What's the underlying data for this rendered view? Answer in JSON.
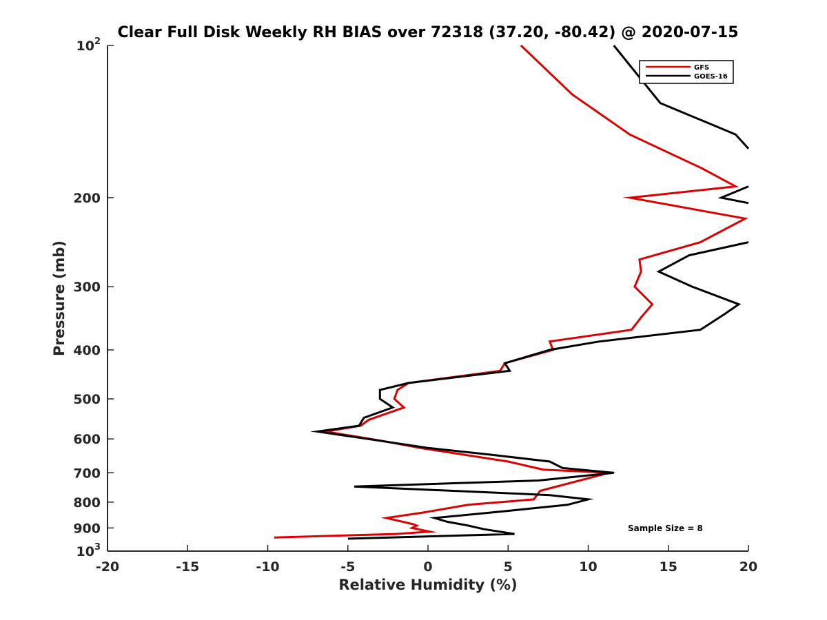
{
  "chart_data": {
    "type": "line",
    "title": "Clear Full Disk Weekly RH BIAS over 72318 (37.20, -80.42) @ 2020-07-15",
    "xlabel": "Relative Humidity (%)",
    "ylabel": "Pressure (mb)",
    "xlim": [
      -20,
      20
    ],
    "ylim": [
      100,
      1000
    ],
    "yscale": "log",
    "y_reversed": true,
    "x_ticks": [
      "-20",
      "-15",
      "-10",
      "-5",
      "0",
      "5",
      "10",
      "15",
      "20"
    ],
    "y_ticks": [
      {
        "value": 100,
        "label": "10",
        "sup": "2"
      },
      {
        "value": 200,
        "label": "200",
        "sup": ""
      },
      {
        "value": 300,
        "label": "300",
        "sup": ""
      },
      {
        "value": 400,
        "label": "400",
        "sup": ""
      },
      {
        "value": 500,
        "label": "500",
        "sup": ""
      },
      {
        "value": 600,
        "label": "600",
        "sup": ""
      },
      {
        "value": 700,
        "label": "700",
        "sup": ""
      },
      {
        "value": 800,
        "label": "800",
        "sup": ""
      },
      {
        "value": 900,
        "label": "900",
        "sup": ""
      },
      {
        "value": 1000,
        "label": "10",
        "sup": "3"
      }
    ],
    "grid": false,
    "legend_position": "top-right",
    "annotation": "Sample Size = 8",
    "series": [
      {
        "name": "GFS",
        "color": "#dd0000",
        "points": [
          [
            5.8,
            100
          ],
          [
            9.0,
            125
          ],
          [
            12.6,
            150
          ],
          [
            17.1,
            175
          ],
          [
            19.2,
            190
          ],
          [
            12.6,
            200
          ],
          [
            19.8,
            220
          ],
          [
            17.0,
            245
          ],
          [
            13.2,
            265
          ],
          [
            13.3,
            280
          ],
          [
            12.9,
            300
          ],
          [
            14.0,
            325
          ],
          [
            13.3,
            345
          ],
          [
            12.7,
            365
          ],
          [
            7.6,
            385
          ],
          [
            7.8,
            400
          ],
          [
            4.8,
            425
          ],
          [
            4.5,
            440
          ],
          [
            -1.2,
            465
          ],
          [
            -1.9,
            480
          ],
          [
            -2.1,
            500
          ],
          [
            -1.5,
            520
          ],
          [
            -3.7,
            550
          ],
          [
            -4.2,
            565
          ],
          [
            -6.4,
            580
          ],
          [
            -2.9,
            605
          ],
          [
            -0.5,
            625
          ],
          [
            5.0,
            665
          ],
          [
            7.2,
            690
          ],
          [
            11.3,
            700
          ],
          [
            7.0,
            760
          ],
          [
            6.6,
            790
          ],
          [
            2.5,
            810
          ],
          [
            -0.4,
            840
          ],
          [
            -2.6,
            860
          ],
          [
            -0.9,
            885
          ],
          [
            -0.7,
            890
          ],
          [
            -1.0,
            900
          ],
          [
            0.1,
            915
          ],
          [
            -2.0,
            925
          ],
          [
            -9.6,
            940
          ]
        ]
      },
      {
        "name": "GOES-16",
        "color": "#000000",
        "points": [
          [
            11.6,
            100
          ],
          [
            14.5,
            130
          ],
          [
            19.2,
            150
          ],
          [
            20.0,
            160
          ],
          [
            null,
            170
          ],
          [
            20.0,
            190
          ],
          [
            18.3,
            200
          ],
          [
            20.0,
            205
          ],
          [
            null,
            220
          ],
          [
            20.0,
            245
          ],
          [
            16.3,
            260
          ],
          [
            14.4,
            280
          ],
          [
            16.5,
            300
          ],
          [
            19.4,
            325
          ],
          [
            18.5,
            340
          ],
          [
            17.0,
            365
          ],
          [
            10.7,
            385
          ],
          [
            7.6,
            400
          ],
          [
            4.8,
            425
          ],
          [
            5.1,
            440
          ],
          [
            -1.2,
            465
          ],
          [
            -3.0,
            480
          ],
          [
            -3.0,
            500
          ],
          [
            -2.2,
            520
          ],
          [
            -4.0,
            545
          ],
          [
            -4.3,
            565
          ],
          [
            -6.9,
            580
          ],
          [
            -3.0,
            605
          ],
          [
            0.0,
            625
          ],
          [
            4.0,
            645
          ],
          [
            7.6,
            665
          ],
          [
            8.4,
            685
          ],
          [
            11.6,
            700
          ],
          [
            6.9,
            725
          ],
          [
            -4.6,
            745
          ],
          [
            7.6,
            775
          ],
          [
            10.0,
            790
          ],
          [
            8.7,
            810
          ],
          [
            4.6,
            835
          ],
          [
            0.4,
            860
          ],
          [
            1.2,
            875
          ],
          [
            2.5,
            890
          ],
          [
            3.5,
            905
          ],
          [
            5.4,
            925
          ],
          [
            -5.0,
            945
          ]
        ]
      }
    ]
  }
}
